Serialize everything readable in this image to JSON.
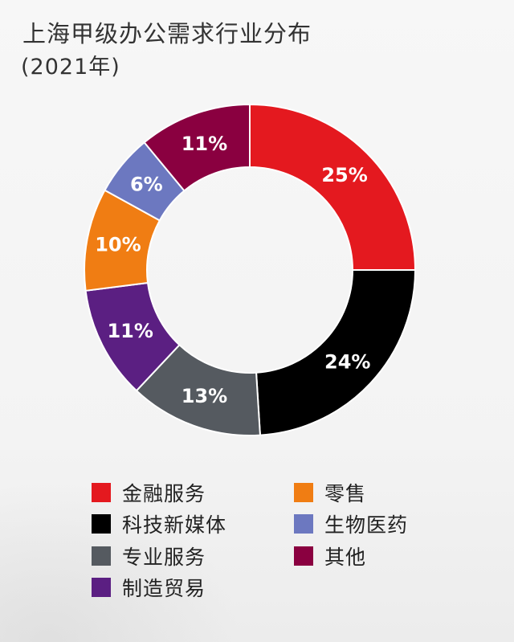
{
  "chart_data": {
    "type": "pie",
    "title": "上海甲级办公需求行业分布",
    "subtitle": "(2021年)",
    "series": [
      {
        "name": "金融服务",
        "value": 25,
        "label": "25%",
        "color": "#e4191f"
      },
      {
        "name": "科技新媒体",
        "value": 24,
        "label": "24%",
        "color": "#000000"
      },
      {
        "name": "专业服务",
        "value": 13,
        "label": "13%",
        "color": "#555a60"
      },
      {
        "name": "制造贸易",
        "value": 11,
        "label": "11%",
        "color": "#5b1f82"
      },
      {
        "name": "零售",
        "value": 10,
        "label": "10%",
        "color": "#f07d13"
      },
      {
        "name": "生物医药",
        "value": 6,
        "label": "6%",
        "color": "#6c78c0"
      },
      {
        "name": "其他",
        "value": 11,
        "label": "11%",
        "color": "#8a0040"
      }
    ],
    "legend": [
      "金融服务",
      "零售",
      "科技新媒体",
      "生物医药",
      "专业服务",
      "其他",
      "制造贸易"
    ],
    "legend_placement": "bottom"
  }
}
